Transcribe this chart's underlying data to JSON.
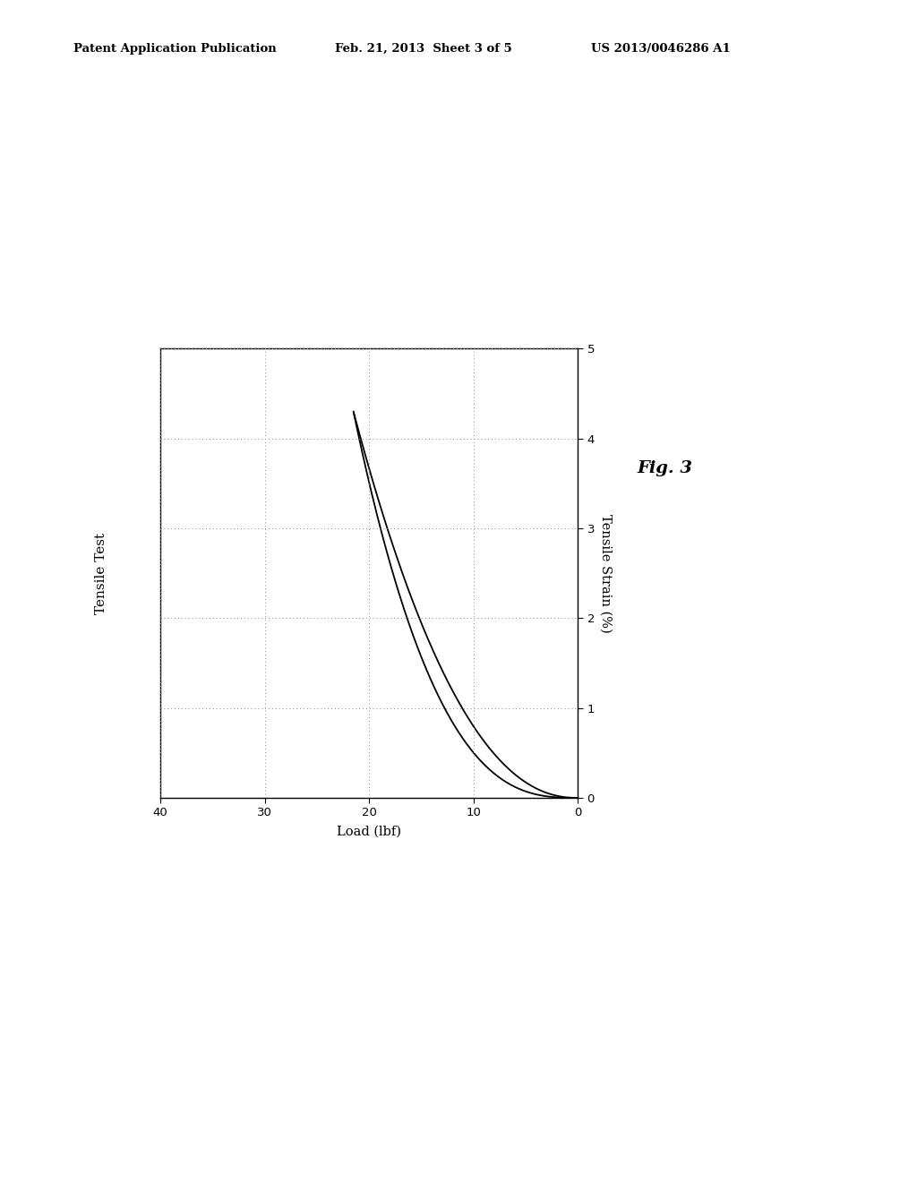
{
  "title": "Tensile Test",
  "xlabel": "Load (lbf)",
  "ylabel": "Tensile Strain (%)",
  "x_lim": [
    40,
    0
  ],
  "y_lim": [
    0,
    5
  ],
  "x_ticks": [
    40,
    30,
    20,
    10,
    0
  ],
  "y_ticks": [
    0,
    1,
    2,
    3,
    4,
    5
  ],
  "background_color": "#ffffff",
  "line_color": "#000000",
  "grid_color": "#888888",
  "header_left": "Patent Application Publication",
  "header_center": "Feb. 21, 2013  Sheet 3 of 5",
  "header_right": "US 2013/0046286 A1",
  "fig_label": "Fig. 3",
  "load_peak": 21.5,
  "strain_peak": 4.3
}
